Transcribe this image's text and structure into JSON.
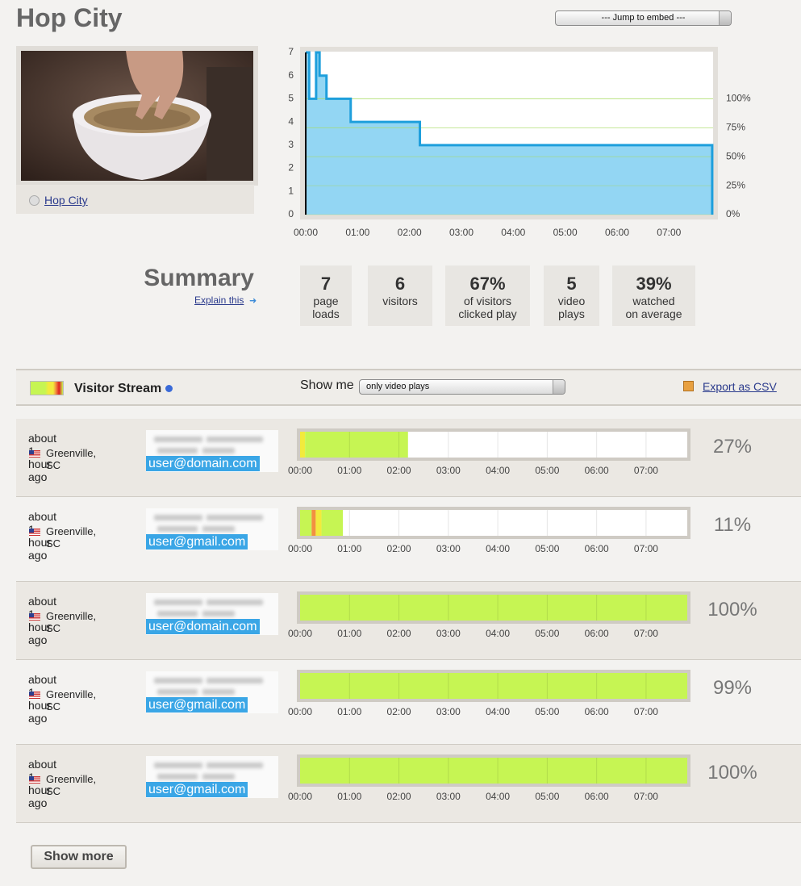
{
  "header": {
    "title": "Hop City",
    "jump_select": "--- Jump to embed ---"
  },
  "video": {
    "link": "Hop City"
  },
  "chart_data": {
    "type": "line",
    "step": "post",
    "color": "#1e9fdc",
    "fill": "#93d6f3",
    "grid_color": "#a8dc62",
    "x": [
      0,
      4,
      12,
      16,
      24,
      52,
      132,
      470
    ],
    "values": [
      7,
      5,
      7,
      6,
      5,
      4,
      3,
      0
    ],
    "xlim": [
      0,
      471
    ],
    "xticks": [
      {
        "value": 0,
        "label": "00:00"
      },
      {
        "value": 60,
        "label": "01:00"
      },
      {
        "value": 120,
        "label": "02:00"
      },
      {
        "value": 180,
        "label": "03:00"
      },
      {
        "value": 240,
        "label": "04:00"
      },
      {
        "value": 300,
        "label": "05:00"
      },
      {
        "value": 360,
        "label": "06:00"
      },
      {
        "value": 420,
        "label": "07:00"
      }
    ],
    "ylim": [
      0,
      7
    ],
    "yticks": [
      0,
      1,
      2,
      3,
      4,
      5,
      6,
      7
    ],
    "y2lim": [
      0,
      140
    ],
    "y2ticks": [
      {
        "value": 0,
        "label": "0%"
      },
      {
        "value": 25,
        "label": "25%"
      },
      {
        "value": 50,
        "label": "50%"
      },
      {
        "value": 75,
        "label": "75%"
      },
      {
        "value": 100,
        "label": "100%"
      }
    ],
    "grid": "y2"
  },
  "summary": {
    "title": "Summary",
    "explain": "Explain this",
    "stats": [
      {
        "value": "7",
        "label": [
          "page",
          "loads"
        ]
      },
      {
        "value": "6",
        "label": [
          "visitors"
        ]
      },
      {
        "value": "67%",
        "label": [
          "of visitors",
          "clicked play"
        ]
      },
      {
        "value": "5",
        "label": [
          "video",
          "plays"
        ]
      },
      {
        "value": "39%",
        "label": [
          "watched",
          "on average"
        ]
      }
    ]
  },
  "visitor_stream": {
    "title": "Visitor Stream",
    "show_me": "Show me",
    "filter": "only video plays",
    "export": "Export as CSV",
    "timeline": {
      "xlim": [
        0,
        470
      ],
      "xticks": [
        {
          "value": 0,
          "label": "00:00"
        },
        {
          "value": 60,
          "label": "01:00"
        },
        {
          "value": 120,
          "label": "02:00"
        },
        {
          "value": 180,
          "label": "03:00"
        },
        {
          "value": 240,
          "label": "04:00"
        },
        {
          "value": 300,
          "label": "05:00"
        },
        {
          "value": 360,
          "label": "06:00"
        },
        {
          "value": 420,
          "label": "07:00"
        }
      ]
    },
    "rows": [
      {
        "time": "about 1 hour ago",
        "location": "Greenville, SC",
        "email": "user@domain.com",
        "percent": "27%",
        "segments": [
          {
            "start": 0,
            "end": 6,
            "color": "#f2ea3c"
          },
          {
            "start": 6,
            "end": 131,
            "color": "#c6f553"
          }
        ]
      },
      {
        "time": "about 1 hour ago",
        "location": "Greenville, SC",
        "email": "user@gmail.com",
        "percent": "11%",
        "segments": [
          {
            "start": 0,
            "end": 14,
            "color": "#c6f553"
          },
          {
            "start": 14,
            "end": 19,
            "color": "#f29040"
          },
          {
            "start": 19,
            "end": 26,
            "color": "#f2ea3c"
          },
          {
            "start": 26,
            "end": 52,
            "color": "#c6f553"
          }
        ]
      },
      {
        "time": "about 1 hour ago",
        "location": "Greenville, SC",
        "email": "user@domain.com",
        "percent": "100%",
        "segments": [
          {
            "start": 0,
            "end": 470,
            "color": "#c6f553"
          }
        ]
      },
      {
        "time": "about 1 hour ago",
        "location": "Greenville, SC",
        "email": "user@gmail.com",
        "percent": "99%",
        "segments": [
          {
            "start": 0,
            "end": 470,
            "color": "#c6f553"
          }
        ]
      },
      {
        "time": "about 1 hour ago",
        "location": "Greenville, SC",
        "email": "user@gmail.com",
        "percent": "100%",
        "segments": [
          {
            "start": 0,
            "end": 470,
            "color": "#c6f553"
          }
        ]
      }
    ]
  },
  "show_more": "Show more"
}
